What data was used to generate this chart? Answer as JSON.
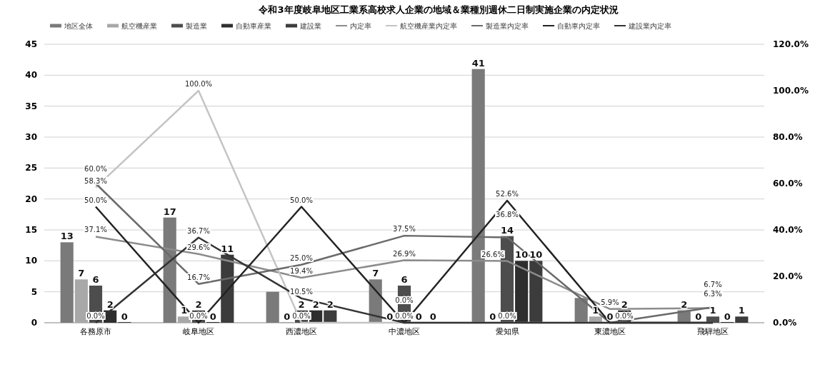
{
  "chart_data": {
    "type": "bar",
    "title": "令和3年度岐阜地区工業系高校求人企業の地域＆業種別週休二日制実施企業の内定状況",
    "categories": [
      "各務原市",
      "岐阜地区",
      "西濃地区",
      "中濃地区",
      "愛知県",
      "東濃地区",
      "飛騨地区"
    ],
    "ylim": [
      0,
      45
    ],
    "yticks": [
      0,
      5,
      10,
      15,
      20,
      25,
      30,
      35,
      40,
      45
    ],
    "y2lim": [
      0,
      120
    ],
    "y2ticks": [
      {
        "value": 0,
        "label": "0.0%"
      },
      {
        "value": 20,
        "label": "20.0%"
      },
      {
        "value": 40,
        "label": "40.0%"
      },
      {
        "value": 60,
        "label": "60.0%"
      },
      {
        "value": 80,
        "label": "80.0%"
      },
      {
        "value": 100,
        "label": "100.0%"
      },
      {
        "value": 120,
        "label": "120.0%"
      }
    ],
    "grid": "y",
    "legend": "top",
    "series": [
      {
        "name": "地区全体",
        "color": "#7a7a7a",
        "values": [
          13,
          17,
          5,
          7,
          41,
          4,
          2
        ],
        "value_labels": [
          "13",
          "17",
          null,
          "7",
          "41",
          null,
          "2"
        ]
      },
      {
        "name": "航空機産業",
        "color": "#a8a8a8",
        "values": [
          7,
          1,
          0,
          0,
          0,
          1,
          0
        ],
        "value_labels": [
          "7",
          "1",
          "0",
          "0",
          "0",
          "1",
          "0"
        ]
      },
      {
        "name": "製造業",
        "color": "#4d4d4d",
        "values": [
          6,
          2,
          2,
          6,
          14,
          0,
          1
        ],
        "value_labels": [
          "6",
          "2",
          "2",
          "6",
          "14",
          "0",
          "1"
        ]
      },
      {
        "name": "自動車産業",
        "color": "#2e2e2e",
        "values": [
          2,
          0,
          2,
          0,
          10,
          2,
          0
        ],
        "value_labels": [
          "2",
          "0",
          "2",
          "0",
          "10",
          "2",
          "0"
        ]
      },
      {
        "name": "建設業",
        "color": "#3c3c3c",
        "values": [
          0,
          11,
          2,
          0,
          10,
          0,
          1
        ],
        "value_labels": [
          "0",
          "11",
          "2",
          "0",
          "10",
          null,
          "1"
        ]
      },
      {
        "name": "内定率",
        "type": "line",
        "axis": "y2",
        "color": "#8c8c8c",
        "values": [
          37.1,
          29.6,
          19.4,
          26.9,
          26.6,
          5.9,
          6.3
        ],
        "value_labels": [
          "37.1%",
          "29.6%",
          "19.4%",
          "26.9%",
          "26.6%",
          "5.9%",
          "6.3%"
        ]
      },
      {
        "name": "航空機産業内定率",
        "type": "line",
        "axis": "y2",
        "color": "#c4c4c4",
        "values": [
          58.3,
          100.0,
          0.0,
          0.0,
          0.0,
          0.0,
          0.0
        ],
        "value_labels": [
          "58.3%",
          "100.0%",
          "0.0%",
          "0.0%",
          null,
          "0.0%",
          null
        ]
      },
      {
        "name": "製造業内定率",
        "type": "line",
        "axis": "y2",
        "color": "#6a6a6a",
        "values": [
          60.0,
          16.7,
          25.0,
          37.5,
          36.8,
          0.0,
          6.7
        ],
        "value_labels": [
          "60.0%",
          "16.7%",
          "25.0%",
          "37.5%",
          "36.8%",
          null,
          "6.7%"
        ]
      },
      {
        "name": "自動車内定率",
        "type": "line",
        "axis": "y2",
        "color": "#222222",
        "values": [
          50.0,
          0.0,
          50.0,
          0.0,
          52.6,
          0.0,
          0.0
        ],
        "value_labels": [
          "50.0%",
          "0.0%",
          "50.0%",
          null,
          "52.6%",
          null,
          null
        ]
      },
      {
        "name": "建設業内定率",
        "type": "line",
        "axis": "y2",
        "color": "#333333",
        "values": [
          0.0,
          36.7,
          10.5,
          0.0,
          0.0,
          0.0,
          0.0
        ],
        "value_labels": [
          "0.0%",
          "36.7%",
          "10.5%",
          "0.0%",
          "0.0%",
          null,
          null
        ]
      }
    ]
  }
}
